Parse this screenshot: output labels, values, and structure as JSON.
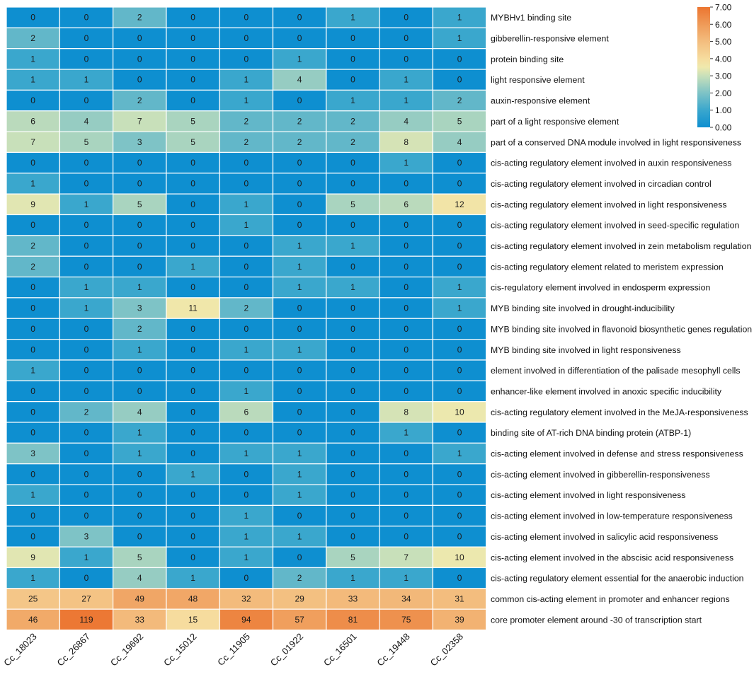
{
  "chart_data": {
    "type": "heatmap",
    "title": "",
    "xlabel": "",
    "ylabel": "",
    "columns": [
      "Cc_18023",
      "Cc_26867",
      "Cc_19692",
      "Cc_15012",
      "Cc_11905",
      "Cc_01922",
      "Cc_16501",
      "Cc_19448",
      "Cc_02358"
    ],
    "rows": [
      "MYBHv1 binding site",
      "gibberellin-responsive element",
      "protein binding site",
      "light responsive element",
      "auxin-responsive element",
      "part of a light responsive element",
      "part of a conserved DNA module involved in light responsiveness",
      "cis-acting regulatory element involved in auxin responsiveness",
      "cis-acting regulatory element involved in circadian control",
      "cis-acting regulatory element involved in light responsiveness",
      "cis-acting regulatory element involved in seed-specific regulation",
      "cis-acting regulatory element involved in zein metabolism regulation",
      "cis-acting regulatory element related to meristem expression",
      "cis-regulatory element involved in endosperm expression",
      "MYB binding site involved in drought-inducibility",
      "MYB binding site involved in flavonoid biosynthetic genes regulation",
      "MYB binding site involved in light responsiveness",
      "element involved in differentiation of the palisade mesophyll cells",
      "enhancer-like element involved in anoxic specific inducibility",
      "cis-acting regulatory element involved in the MeJA-responsiveness",
      "binding site of AT-rich DNA binding protein (ATBP-1)",
      "cis-acting element involved in defense and stress responsiveness",
      "cis-acting element involved in gibberellin-responsiveness",
      "cis-acting element involved in light responsiveness",
      "cis-acting element involved in low-temperature responsiveness",
      "cis-acting element involved in salicylic acid responsiveness",
      "cis-acting element involved in the abscisic acid responsiveness",
      "cis-acting regulatory element essential for the anaerobic induction",
      "common cis-acting element in promoter and enhancer regions",
      "core promoter element around -30 of transcription start"
    ],
    "values": [
      [
        0,
        0,
        2,
        0,
        0,
        0,
        1,
        0,
        1
      ],
      [
        2,
        0,
        0,
        0,
        0,
        0,
        0,
        0,
        1
      ],
      [
        1,
        0,
        0,
        0,
        0,
        1,
        0,
        0,
        0
      ],
      [
        1,
        1,
        0,
        0,
        1,
        4,
        0,
        1,
        0
      ],
      [
        0,
        0,
        2,
        0,
        1,
        0,
        1,
        1,
        2
      ],
      [
        6,
        4,
        7,
        5,
        2,
        2,
        2,
        4,
        5
      ],
      [
        7,
        5,
        3,
        5,
        2,
        2,
        2,
        8,
        4
      ],
      [
        0,
        0,
        0,
        0,
        0,
        0,
        0,
        1,
        0
      ],
      [
        1,
        0,
        0,
        0,
        0,
        0,
        0,
        0,
        0
      ],
      [
        9,
        1,
        5,
        0,
        1,
        0,
        5,
        6,
        12
      ],
      [
        0,
        0,
        0,
        0,
        1,
        0,
        0,
        0,
        0
      ],
      [
        2,
        0,
        0,
        0,
        0,
        1,
        1,
        0,
        0
      ],
      [
        2,
        0,
        0,
        1,
        0,
        1,
        0,
        0,
        0
      ],
      [
        0,
        1,
        1,
        0,
        0,
        1,
        1,
        0,
        1
      ],
      [
        0,
        1,
        3,
        11,
        2,
        0,
        0,
        0,
        1
      ],
      [
        0,
        0,
        2,
        0,
        0,
        0,
        0,
        0,
        0
      ],
      [
        0,
        0,
        1,
        0,
        1,
        1,
        0,
        0,
        0
      ],
      [
        1,
        0,
        0,
        0,
        0,
        0,
        0,
        0,
        0
      ],
      [
        0,
        0,
        0,
        0,
        1,
        0,
        0,
        0,
        0
      ],
      [
        0,
        2,
        4,
        0,
        6,
        0,
        0,
        8,
        10
      ],
      [
        0,
        0,
        1,
        0,
        0,
        0,
        0,
        1,
        0
      ],
      [
        3,
        0,
        1,
        0,
        1,
        1,
        0,
        0,
        1
      ],
      [
        0,
        0,
        0,
        1,
        0,
        1,
        0,
        0,
        0
      ],
      [
        1,
        0,
        0,
        0,
        0,
        1,
        0,
        0,
        0
      ],
      [
        0,
        0,
        0,
        0,
        1,
        0,
        0,
        0,
        0
      ],
      [
        0,
        3,
        0,
        0,
        1,
        1,
        0,
        0,
        0
      ],
      [
        9,
        1,
        5,
        0,
        1,
        0,
        5,
        7,
        10
      ],
      [
        1,
        0,
        4,
        1,
        0,
        2,
        1,
        1,
        0
      ],
      [
        25,
        27,
        49,
        48,
        32,
        29,
        33,
        34,
        31
      ],
      [
        46,
        119,
        33,
        15,
        94,
        57,
        81,
        75,
        39
      ]
    ],
    "color_scale": {
      "type": "log2(value+1)",
      "domain": [
        0.0,
        7.0
      ],
      "stops": [
        {
          "value": 0.0,
          "color": "#0e8fd0"
        },
        {
          "value": 1.0,
          "color": "#3aa7cd"
        },
        {
          "value": 2.0,
          "color": "#7ec3c6"
        },
        {
          "value": 3.0,
          "color": "#c8e0ba"
        },
        {
          "value": 3.5,
          "color": "#efe9ad"
        },
        {
          "value": 4.0,
          "color": "#f6dc9e"
        },
        {
          "value": 5.0,
          "color": "#f3bd7e"
        },
        {
          "value": 6.0,
          "color": "#ef9a58"
        },
        {
          "value": 7.0,
          "color": "#ec7530"
        }
      ]
    },
    "legend": {
      "position": "top-right",
      "ticks": [
        "7.00",
        "6.00",
        "5.00",
        "4.00",
        "3.00",
        "2.00",
        "1.00",
        "0.00"
      ]
    }
  }
}
